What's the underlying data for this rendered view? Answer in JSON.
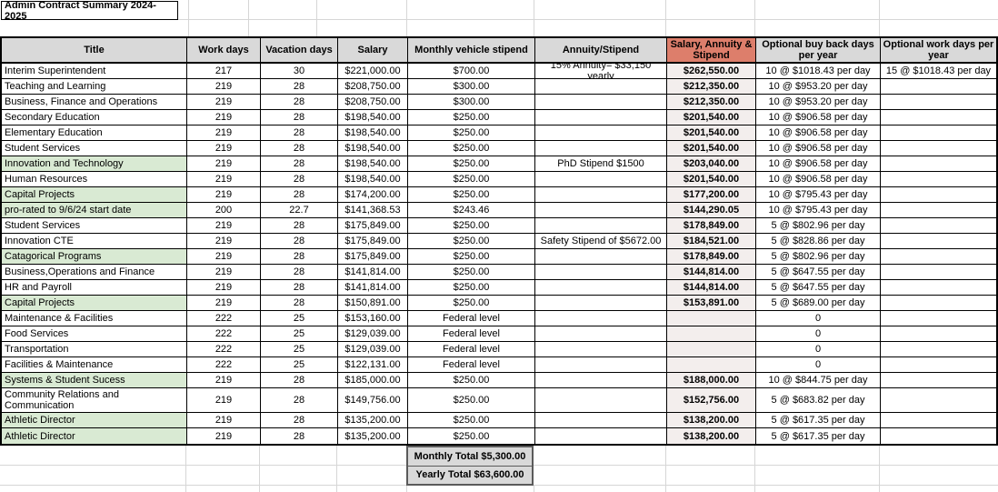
{
  "sheet_title": "Admin Contract Summary 2024-2025",
  "colors": {
    "header_bg": "#d9d9d9",
    "accent_header_bg": "#dd7e6b",
    "accent_cell_bg": "#f3eeed",
    "highlight_green": "#d9ead3",
    "totals_bg": "#d9d9d9"
  },
  "columns": [
    "Title",
    "Work days",
    "Vacation days",
    "Salary",
    "Monthly vehicle stipend",
    "Annuity/Stipend",
    "Salary, Annuity & Stipend",
    "Optional buy back days per year",
    "Optional work days per year"
  ],
  "rows": [
    {
      "title": "Interim Superintendent",
      "work_days": "217",
      "vacation_days": "30",
      "salary": "$221,000.00",
      "vehicle_stipend": "$700.00",
      "annuity_stipend": "15% Annuity= $33,150 yearly",
      "total_comp": "$262,550.00",
      "buy_back": "10 @ $1018.43 per day",
      "optional_work": "15 @ $1018.43 per day",
      "highlight": false
    },
    {
      "title": "Teaching and Learning",
      "work_days": "219",
      "vacation_days": "28",
      "salary": "$208,750.00",
      "vehicle_stipend": "$300.00",
      "annuity_stipend": "",
      "total_comp": "$212,350.00",
      "buy_back": "10 @ $953.20 per day",
      "optional_work": "",
      "highlight": false
    },
    {
      "title": "Business, Finance and Operations",
      "work_days": "219",
      "vacation_days": "28",
      "salary": "$208,750.00",
      "vehicle_stipend": "$300.00",
      "annuity_stipend": "",
      "total_comp": "$212,350.00",
      "buy_back": "10 @ $953.20 per day",
      "optional_work": "",
      "highlight": false
    },
    {
      "title": "Secondary Education",
      "work_days": "219",
      "vacation_days": "28",
      "salary": "$198,540.00",
      "vehicle_stipend": "$250.00",
      "annuity_stipend": "",
      "total_comp": "$201,540.00",
      "buy_back": "10 @ $906.58 per day",
      "optional_work": "",
      "highlight": false
    },
    {
      "title": "Elementary Education",
      "work_days": "219",
      "vacation_days": "28",
      "salary": "$198,540.00",
      "vehicle_stipend": "$250.00",
      "annuity_stipend": "",
      "total_comp": "$201,540.00",
      "buy_back": "10 @ $906.58 per day",
      "optional_work": "",
      "highlight": false
    },
    {
      "title": "Student Services",
      "work_days": "219",
      "vacation_days": "28",
      "salary": "$198,540.00",
      "vehicle_stipend": "$250.00",
      "annuity_stipend": "",
      "total_comp": "$201,540.00",
      "buy_back": "10 @ $906.58 per day",
      "optional_work": "",
      "highlight": false
    },
    {
      "title": "Innovation and Technology",
      "work_days": "219",
      "vacation_days": "28",
      "salary": "$198,540.00",
      "vehicle_stipend": "$250.00",
      "annuity_stipend": "PhD Stipend $1500",
      "total_comp": "$203,040.00",
      "buy_back": "10 @ $906.58 per day",
      "optional_work": "",
      "highlight": true
    },
    {
      "title": "Human Resources",
      "work_days": "219",
      "vacation_days": "28",
      "salary": "$198,540.00",
      "vehicle_stipend": "$250.00",
      "annuity_stipend": "",
      "total_comp": "$201,540.00",
      "buy_back": "10 @ $906.58 per day",
      "optional_work": "",
      "highlight": false
    },
    {
      "title": "Capital Projects",
      "work_days": "219",
      "vacation_days": "28",
      "salary": "$174,200.00",
      "vehicle_stipend": "$250.00",
      "annuity_stipend": "",
      "total_comp": "$177,200.00",
      "buy_back": "10 @ $795.43 per day",
      "optional_work": "",
      "highlight": true
    },
    {
      "title": "pro-rated to 9/6/24 start date",
      "work_days": "200",
      "vacation_days": "22.7",
      "salary": "$141,368.53",
      "vehicle_stipend": "$243.46",
      "annuity_stipend": "",
      "total_comp": "$144,290.05",
      "buy_back": "10 @ $795.43 per day",
      "optional_work": "",
      "highlight": true
    },
    {
      "title": "Student Services",
      "work_days": "219",
      "vacation_days": "28",
      "salary": "$175,849.00",
      "vehicle_stipend": "$250.00",
      "annuity_stipend": "",
      "total_comp": "$178,849.00",
      "buy_back": "5 @ $802.96 per day",
      "optional_work": "",
      "highlight": false
    },
    {
      "title": "Innovation CTE",
      "work_days": "219",
      "vacation_days": "28",
      "salary": "$175,849.00",
      "vehicle_stipend": "$250.00",
      "annuity_stipend": "Safety Stipend of $5672.00",
      "total_comp": "$184,521.00",
      "buy_back": "5 @ $828.86 per day",
      "optional_work": "",
      "highlight": false
    },
    {
      "title": "Catagorical Programs",
      "work_days": "219",
      "vacation_days": "28",
      "salary": "$175,849.00",
      "vehicle_stipend": "$250.00",
      "annuity_stipend": "",
      "total_comp": "$178,849.00",
      "buy_back": "5 @ $802.96 per day",
      "optional_work": "",
      "highlight": true
    },
    {
      "title": "Business,Operations and Finance",
      "work_days": "219",
      "vacation_days": "28",
      "salary": "$141,814.00",
      "vehicle_stipend": "$250.00",
      "annuity_stipend": "",
      "total_comp": "$144,814.00",
      "buy_back": "5 @ $647.55 per day",
      "optional_work": "",
      "highlight": false
    },
    {
      "title": "HR and Payroll",
      "work_days": "219",
      "vacation_days": "28",
      "salary": "$141,814.00",
      "vehicle_stipend": "$250.00",
      "annuity_stipend": "",
      "total_comp": "$144,814.00",
      "buy_back": "5 @ $647.55 per day",
      "optional_work": "",
      "highlight": false
    },
    {
      "title": "Capital Projects",
      "work_days": "219",
      "vacation_days": "28",
      "salary": "$150,891.00",
      "vehicle_stipend": "$250.00",
      "annuity_stipend": "",
      "total_comp": "$153,891.00",
      "buy_back": "5 @ $689.00 per day",
      "optional_work": "",
      "highlight": true
    },
    {
      "title": "Maintenance & Facilities",
      "work_days": "222",
      "vacation_days": "25",
      "salary": "$153,160.00",
      "vehicle_stipend": "Federal level",
      "annuity_stipend": "",
      "total_comp": "",
      "buy_back": "0",
      "optional_work": "",
      "highlight": false
    },
    {
      "title": "Food Services",
      "work_days": "222",
      "vacation_days": "25",
      "salary": "$129,039.00",
      "vehicle_stipend": "Federal level",
      "annuity_stipend": "",
      "total_comp": "",
      "buy_back": "0",
      "optional_work": "",
      "highlight": false
    },
    {
      "title": "Transportation",
      "work_days": "222",
      "vacation_days": "25",
      "salary": "$129,039.00",
      "vehicle_stipend": "Federal level",
      "annuity_stipend": "",
      "total_comp": "",
      "buy_back": "0",
      "optional_work": "",
      "highlight": false
    },
    {
      "title": "Facilities & Maintenance",
      "work_days": "222",
      "vacation_days": "25",
      "salary": "$122,131.00",
      "vehicle_stipend": "Federal level",
      "annuity_stipend": "",
      "total_comp": "",
      "buy_back": "0",
      "optional_work": "",
      "highlight": false
    },
    {
      "title": "Systems & Student Sucess",
      "work_days": "219",
      "vacation_days": "28",
      "salary": "$185,000.00",
      "vehicle_stipend": "$250.00",
      "annuity_stipend": "",
      "total_comp": "$188,000.00",
      "buy_back": "10 @ $844.75 per day",
      "optional_work": "",
      "highlight": true
    },
    {
      "title": "Community Relations and Communication",
      "work_days": "219",
      "vacation_days": "28",
      "salary": "$149,756.00",
      "vehicle_stipend": "$250.00",
      "annuity_stipend": "",
      "total_comp": "$152,756.00",
      "buy_back": "5 @ $683.82 per day",
      "optional_work": "",
      "highlight": false,
      "tall": true
    },
    {
      "title": "Athletic Director",
      "work_days": "219",
      "vacation_days": "28",
      "salary": "$135,200.00",
      "vehicle_stipend": "$250.00",
      "annuity_stipend": "",
      "total_comp": "$138,200.00",
      "buy_back": "5 @ $617.35 per day",
      "optional_work": "",
      "highlight": true
    },
    {
      "title": "Athletic Director",
      "work_days": "219",
      "vacation_days": "28",
      "salary": "$135,200.00",
      "vehicle_stipend": "$250.00",
      "annuity_stipend": "",
      "total_comp": "$138,200.00",
      "buy_back": "5 @ $617.35 per day",
      "optional_work": "",
      "highlight": true
    }
  ],
  "totals": {
    "monthly": "Monthly Total $5,300.00",
    "yearly": "Yearly Total $63,600.00"
  }
}
